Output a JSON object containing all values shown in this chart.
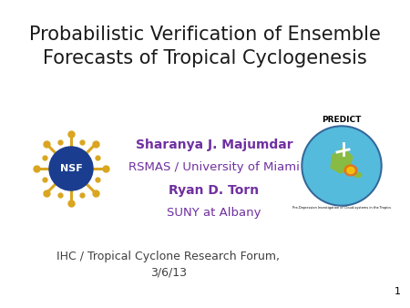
{
  "title_line1": "Probabilistic Verification of Ensemble",
  "title_line2": "Forecasts of Tropical Cyclogenesis",
  "author1": "Sharanya J. Majumdar",
  "affil1": "RSMAS / University of Miami",
  "author2": "Ryan D. Torn",
  "affil2": "SUNY at Albany",
  "footer": "IHC / Tropical Cyclone Research Forum,\n3/6/13",
  "slide_number": "1",
  "background_color": "#ffffff",
  "title_color": "#1a1a1a",
  "author_color": "#7030a0",
  "affil_color": "#7030a0",
  "footer_color": "#404040",
  "slide_num_color": "#000000",
  "title_fontsize": 15,
  "author_fontsize": 10,
  "affil_fontsize": 9.5,
  "footer_fontsize": 9,
  "nsf_gold": "#DAA520",
  "nsf_blue": "#1a3d8f",
  "predict_blue": "#3399cc",
  "predict_cyan": "#55bbdd"
}
